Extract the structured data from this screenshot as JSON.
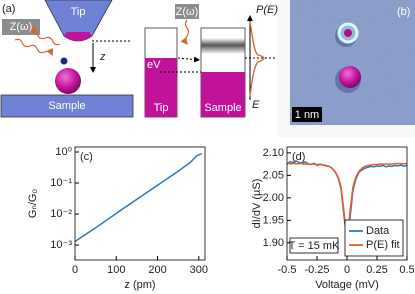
{
  "diagram": {
    "panel_a": "(a)",
    "tip": "Tip",
    "impedance": "Z(ω)",
    "z": "z",
    "sample": "Sample",
    "tip_level": "Tip",
    "sample_level": "Sample",
    "bias": "eV",
    "impedance_mid": "Z(ω)",
    "pe": "P(E)",
    "energy": "E"
  },
  "image": {
    "panel_b": "(b)",
    "scale_bar": "1 nm"
  },
  "chart_data": [
    {
      "type": "line",
      "panel": "(c)",
      "xlabel": "z (pm)",
      "ylabel": "Gₙ/G₀",
      "x": [
        0,
        50,
        100,
        150,
        200,
        250,
        280,
        295,
        307
      ],
      "values": [
        0.0013,
        0.0036,
        0.0105,
        0.03,
        0.085,
        0.24,
        0.47,
        0.76,
        0.88
      ],
      "color": "#2a7ab9",
      "ylog": true,
      "xlim": [
        0,
        315
      ],
      "xticks": [
        0,
        100,
        200,
        300
      ],
      "ylim": [
        0.00033,
        1.45
      ],
      "yticks": [
        {
          "value": 0.001,
          "label": "10⁻³"
        },
        {
          "value": 0.01,
          "label": "10⁻²"
        },
        {
          "value": 0.1,
          "label": "10⁻¹"
        },
        {
          "value": 1,
          "label": "10⁰"
        }
      ]
    },
    {
      "type": "line",
      "panel": "(d)",
      "xlabel": "Voltage (mV)",
      "ylabel": "dI/dV (µS)",
      "annotation": "T = 15 mK",
      "legend": "lower right",
      "x": [
        -0.5,
        -0.475,
        -0.45,
        -0.425,
        -0.4,
        -0.375,
        -0.35,
        -0.325,
        -0.3,
        -0.275,
        -0.25,
        -0.225,
        -0.2,
        -0.175,
        -0.15,
        -0.125,
        -0.1,
        -0.075,
        -0.05,
        -0.025,
        0,
        0.025,
        0.05,
        0.075,
        0.1,
        0.125,
        0.15,
        0.175,
        0.2,
        0.225,
        0.25,
        0.275,
        0.3,
        0.325,
        0.35,
        0.375,
        0.4,
        0.425,
        0.45,
        0.475,
        0.5
      ],
      "series": [
        {
          "name": "Data",
          "color": "#2a7ab9",
          "values": [
            2.075,
            2.08,
            2.078,
            2.082,
            2.079,
            2.077,
            2.08,
            2.076,
            2.074,
            2.077,
            2.072,
            2.075,
            2.073,
            2.071,
            2.07,
            2.066,
            2.058,
            2.045,
            2.02,
            1.96,
            1.905,
            1.955,
            2.018,
            2.043,
            2.057,
            2.062,
            2.066,
            2.068,
            2.07,
            2.069,
            2.071,
            2.07,
            2.072,
            2.069,
            2.071,
            2.07,
            2.072,
            2.071,
            2.073,
            2.07,
            2.072
          ]
        },
        {
          "name": "P(E) fit",
          "color": "#e0602a",
          "values": [
            2.076,
            2.076,
            2.076,
            2.076,
            2.076,
            2.076,
            2.075,
            2.075,
            2.075,
            2.075,
            2.074,
            2.074,
            2.073,
            2.072,
            2.07,
            2.066,
            2.059,
            2.047,
            2.025,
            1.97,
            1.905,
            1.97,
            2.025,
            2.047,
            2.059,
            2.066,
            2.07,
            2.072,
            2.073,
            2.074,
            2.074,
            2.075,
            2.075,
            2.075,
            2.075,
            2.075,
            2.076,
            2.076,
            2.076,
            2.076,
            2.076
          ]
        }
      ],
      "xlim": [
        -0.5,
        0.5
      ],
      "xticks": [
        -0.5,
        -0.25,
        0,
        0.25,
        0.5
      ],
      "ylim": [
        1.862,
        2.113
      ],
      "yticks": [
        {
          "value": 1.9,
          "label": "1.90"
        },
        1.95,
        {
          "value": 2,
          "label": "2.00"
        },
        2.05,
        {
          "value": 2.1,
          "label": "2.10"
        }
      ]
    }
  ]
}
